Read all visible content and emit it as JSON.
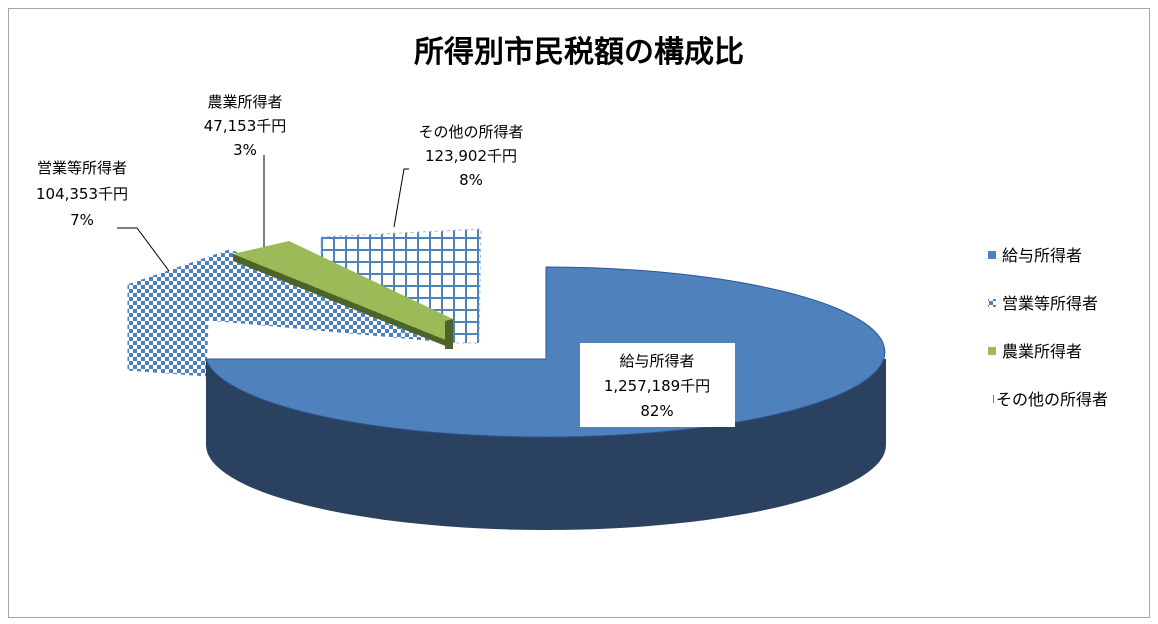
{
  "chart_data": {
    "type": "pie",
    "title": "所得別市民税額の構成比",
    "slices": [
      {
        "name": "給与所得者",
        "value_label": "1,257,189千円",
        "value": 1257189,
        "percent_label": "82%",
        "color": "#4f81bd"
      },
      {
        "name": "営業等所得者",
        "value_label": "104,353千円",
        "value": 104353,
        "percent_label": "7%",
        "color": "#4f81bd"
      },
      {
        "name": "農業所得者",
        "value_label": "47,153千円",
        "value": 47153,
        "percent_label": "3%",
        "color": "#9bbb59"
      },
      {
        "name": "その他の所得者",
        "value_label": "123,902千円",
        "value": 123902,
        "percent_label": "8%",
        "color": "#4f81bd"
      }
    ],
    "legend": [
      "給与所得者",
      "営業等所得者",
      "農業所得者",
      "その他の所得者"
    ],
    "legend_position": "right",
    "style": "3d-exploded"
  }
}
